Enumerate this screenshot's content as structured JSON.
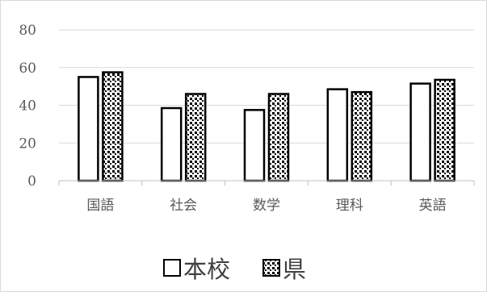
{
  "chart_data": {
    "type": "bar",
    "categories": [
      "国語",
      "社会",
      "数学",
      "理科",
      "英語"
    ],
    "series": [
      {
        "name": "本校",
        "values": [
          55,
          38.5,
          37.5,
          48.5,
          51.5
        ],
        "pattern": "white"
      },
      {
        "name": "県",
        "values": [
          57.5,
          46,
          46,
          47,
          53.5
        ],
        "pattern": "dots"
      }
    ],
    "ylim": [
      0,
      80
    ],
    "yticks": [
      0,
      20,
      40,
      60,
      80
    ],
    "grid": true,
    "legend_position": "bottom",
    "title": "",
    "xlabel": "",
    "ylabel": ""
  },
  "colors": {
    "bar_stroke": "#000000",
    "bar_fill": "#ffffff",
    "gridline": "#d9d9d9",
    "axis": "#bfbfbf",
    "text": "#595959"
  }
}
